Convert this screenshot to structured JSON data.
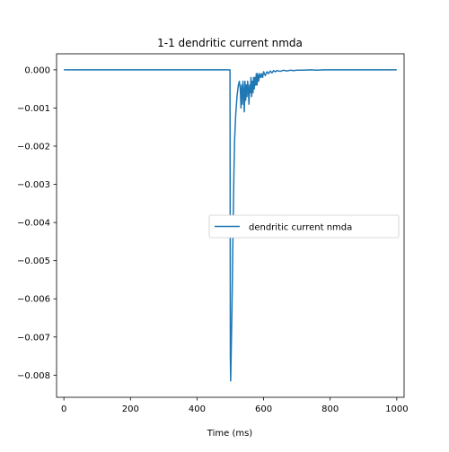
{
  "chart_data": {
    "type": "line",
    "title": "1-1 dendritic current nmda",
    "xlabel": "Time (ms)",
    "ylabel": "",
    "xlim": [
      -22,
      1022
    ],
    "ylim": [
      -0.00858,
      0.00042
    ],
    "xticks": [
      0,
      200,
      400,
      600,
      800,
      1000
    ],
    "xtick_labels": [
      "0",
      "200",
      "400",
      "600",
      "800",
      "1000"
    ],
    "yticks": [
      0.0,
      -0.001,
      -0.002,
      -0.003,
      -0.004,
      -0.005,
      -0.006,
      -0.007,
      -0.008
    ],
    "ytick_labels": [
      "0.000",
      "−0.001",
      "−0.002",
      "−0.003",
      "−0.004",
      "−0.005",
      "−0.006",
      "−0.007",
      "−0.008"
    ],
    "grid": false,
    "legend_position": "center-right",
    "series": [
      {
        "name": "dendritic current nmda",
        "color": "#1f77b4",
        "x": [
          0,
          499,
          500,
          501,
          503,
          505,
          507,
          509,
          511,
          513,
          516,
          520,
          524,
          527,
          530,
          532,
          534,
          536,
          538,
          540,
          542,
          544,
          546,
          548,
          550,
          552,
          554,
          556,
          558,
          560,
          562,
          564,
          566,
          568,
          570,
          572,
          574,
          576,
          578,
          580,
          582,
          585,
          588,
          591,
          594,
          597,
          600,
          605,
          610,
          615,
          620,
          625,
          630,
          635,
          640,
          650,
          660,
          670,
          680,
          690,
          700,
          720,
          740,
          760,
          780,
          800,
          850,
          900,
          1000
        ],
        "y": [
          0.0,
          0.0,
          -0.0075,
          -0.00815,
          -0.0072,
          -0.0062,
          -0.0049,
          -0.0037,
          -0.0026,
          -0.0018,
          -0.0012,
          -0.0007,
          -0.0004,
          -0.0003,
          -0.0005,
          -0.001,
          -0.0004,
          -0.0009,
          -0.0003,
          -0.0006,
          -0.0011,
          -0.0003,
          -0.0008,
          -0.0004,
          -0.0007,
          -0.0003,
          -0.0005,
          -0.0009,
          -0.0004,
          -0.0006,
          -0.0002,
          -0.0007,
          -0.0003,
          -0.0006,
          -0.0002,
          -0.0005,
          -0.0002,
          -0.0004,
          -0.0001,
          -0.0004,
          -0.0001,
          -0.0003,
          -0.0001,
          -0.0002,
          -0.0001,
          -0.0002,
          -5e-05,
          -0.00015,
          -5e-05,
          -0.0001,
          -3e-05,
          -8e-05,
          -2e-05,
          -5e-05,
          -2e-05,
          -4e-05,
          -1e-05,
          -3e-05,
          -1e-05,
          -2e-05,
          -1e-05,
          -1e-05,
          0.0,
          -1e-05,
          0.0,
          0.0,
          0.0,
          0.0,
          0.0
        ]
      }
    ]
  }
}
